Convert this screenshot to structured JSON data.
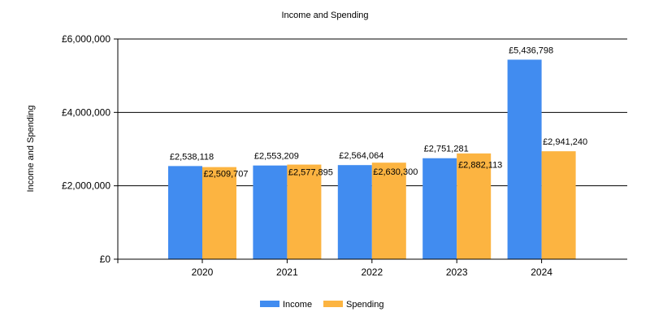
{
  "chart_data": {
    "type": "bar",
    "title": "Income and Spending",
    "ylabel": "Income and Spending",
    "xlabel": "",
    "categories": [
      "2020",
      "2021",
      "2022",
      "2023",
      "2024"
    ],
    "ylim": [
      0,
      6000000
    ],
    "yticks": [
      {
        "value": 0,
        "label": "£0"
      },
      {
        "value": 2000000,
        "label": "£2,000,000"
      },
      {
        "value": 4000000,
        "label": "£4,000,000"
      },
      {
        "value": 6000000,
        "label": "£6,000,000"
      }
    ],
    "grid": true,
    "legend_position": "bottom",
    "series": [
      {
        "name": "Income",
        "color": "#418CF0",
        "values": [
          2538118,
          2553209,
          2564064,
          2751281,
          5436798
        ],
        "labels": [
          "£2,538,118",
          "£2,553,209",
          "£2,564,064",
          "£2,751,281",
          "£5,436,798"
        ]
      },
      {
        "name": "Spending",
        "color": "#FCB441",
        "values": [
          2509707,
          2577895,
          2630300,
          2882113,
          2941240
        ],
        "labels": [
          "£2,509,707",
          "£2,577,895",
          "£2,630,300",
          "£2,882,113",
          "£2,941,240"
        ]
      }
    ]
  }
}
